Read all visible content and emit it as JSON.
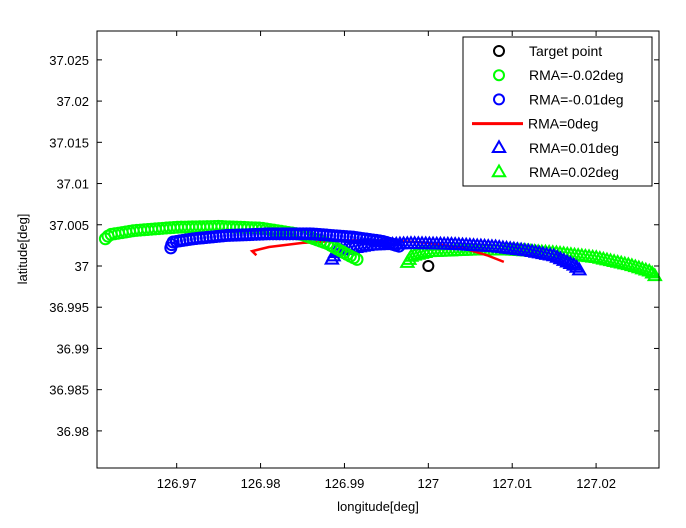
{
  "chart_data": {
    "type": "scatter",
    "title": "",
    "xlabel": "longitude[deg]",
    "ylabel": "latitude[deg]",
    "xlim": [
      126.9605,
      127.0275
    ],
    "ylim": [
      36.9755,
      37.0285
    ],
    "xticks": [
      126.97,
      126.98,
      126.99,
      127,
      127.01,
      127.02
    ],
    "xtick_labels": [
      "126.97",
      "126.98",
      "126.99",
      "127",
      "127.01",
      "127.02"
    ],
    "yticks": [
      36.98,
      36.985,
      36.99,
      36.995,
      37,
      37.005,
      37.01,
      37.015,
      37.02,
      37.025
    ],
    "ytick_labels": [
      "36.98",
      "36.985",
      "36.99",
      "36.995",
      "37",
      "37.005",
      "37.01",
      "37.015",
      "37.02",
      "37.025"
    ],
    "grid": false,
    "legend_position": "top-right",
    "legend": [
      {
        "label": "Target point",
        "color": "#000000",
        "marker": "circle"
      },
      {
        "label": "RMA=-0.02deg",
        "color": "#00ff00",
        "marker": "circle"
      },
      {
        "label": "RMA=-0.01deg",
        "color": "#0000ff",
        "marker": "circle"
      },
      {
        "label": "RMA=0deg",
        "color": "#ff0000",
        "marker": "line"
      },
      {
        "label": "RMA=0.01deg",
        "color": "#0000ff",
        "marker": "triangle"
      },
      {
        "label": "RMA=0.02deg",
        "color": "#00ff00",
        "marker": "triangle"
      }
    ],
    "series": [
      {
        "name": "RMA=-0.02deg",
        "color": "#00ff00",
        "marker": "circle",
        "points": [
          [
            126.9615,
            37.0033
          ],
          [
            126.962,
            37.0038
          ],
          [
            126.965,
            37.0043
          ],
          [
            126.97,
            37.0047
          ],
          [
            126.975,
            37.0048
          ],
          [
            126.98,
            37.0046
          ],
          [
            126.985,
            37.0038
          ],
          [
            126.988,
            37.0027
          ],
          [
            126.9905,
            37.0013
          ],
          [
            126.9915,
            37.0008
          ]
        ]
      },
      {
        "name": "RMA=-0.01deg",
        "color": "#0000ff",
        "marker": "circle",
        "points": [
          [
            126.9693,
            37.0022
          ],
          [
            126.9695,
            37.0029
          ],
          [
            126.972,
            37.0033
          ],
          [
            126.976,
            37.0037
          ],
          [
            126.981,
            37.0039
          ],
          [
            126.986,
            37.0039
          ],
          [
            126.991,
            37.0035
          ],
          [
            126.9945,
            37.003
          ],
          [
            126.9965,
            37.0024
          ]
        ]
      },
      {
        "name": "RMA=0deg",
        "color": "#ff0000",
        "marker": "line",
        "points": [
          [
            126.9795,
            37.0013
          ],
          [
            126.979,
            37.0018
          ],
          [
            126.981,
            37.0023
          ],
          [
            126.985,
            37.0028
          ],
          [
            126.99,
            37.0031
          ],
          [
            126.995,
            37.0031
          ],
          [
            127.0,
            37.0028
          ],
          [
            127.004,
            37.0022
          ],
          [
            127.007,
            37.0013
          ],
          [
            127.009,
            37.0005
          ]
        ]
      },
      {
        "name": "RMA=0.01deg",
        "color": "#0000ff",
        "marker": "triangle",
        "points": [
          [
            126.9885,
            37.0008
          ],
          [
            126.989,
            37.0018
          ],
          [
            126.993,
            37.0025
          ],
          [
            126.998,
            37.0027
          ],
          [
            127.003,
            37.0026
          ],
          [
            127.008,
            37.0023
          ],
          [
            127.012,
            37.0018
          ],
          [
            127.015,
            37.0012
          ],
          [
            127.0175,
            37.0
          ],
          [
            127.018,
            36.9995
          ]
        ]
      },
      {
        "name": "RMA=0.02deg",
        "color": "#00ff00",
        "marker": "triangle",
        "points": [
          [
            126.9975,
            37.0004
          ],
          [
            126.998,
            37.0012
          ],
          [
            127.0,
            37.0017
          ],
          [
            127.005,
            37.0019
          ],
          [
            127.01,
            37.0019
          ],
          [
            127.015,
            37.0016
          ],
          [
            127.02,
            37.001
          ],
          [
            127.024,
            37.0001
          ],
          [
            127.0265,
            36.9993
          ],
          [
            127.027,
            36.9988
          ]
        ]
      },
      {
        "name": "Target point",
        "color": "#000000",
        "marker": "circle",
        "points": [
          [
            127.0,
            37.0
          ]
        ]
      }
    ]
  }
}
